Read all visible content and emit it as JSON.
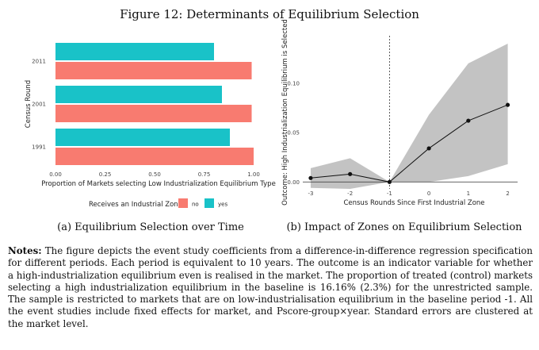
{
  "figure": {
    "title": "Figure 12: Determinants of Equilibrium Selection",
    "caption_a": "(a) Equilibrium Selection over Time",
    "caption_b": "(b) Impact of Zones on Equilibrium Selection",
    "notes_label": "Notes:",
    "notes_text": "The figure depicts the event study coefficients from a difference-in-difference regression specification for different periods. Each period is equivalent to 10 years. The outcome is an indicator variable for whether a high-industrialization equilibrium even is realised in the market. The proportion of treated (control) markets selecting a high industrialization equilibrium in the baseline is 16.16% (2.3%) for the unrestricted sample. The sample is restricted to markets that are on low-industrialisation equilibrium in the baseline period -1. All the event studies include fixed effects for market, and Pscore-group×year. Standard errors are clustered at the market level."
  },
  "chart_data": [
    {
      "type": "bar",
      "orientation": "horizontal",
      "categories": [
        "2011",
        "2001",
        "1991"
      ],
      "series": [
        {
          "name": "yes",
          "color": "#19C2C8",
          "values": [
            0.8,
            0.84,
            0.88
          ]
        },
        {
          "name": "no",
          "color": "#F87B70",
          "values": [
            0.99,
            0.99,
            1.0
          ]
        }
      ],
      "xlabel": "Proportion of Markets selecting Low Industrialization Equilibrium Type",
      "ylabel": "Census Round",
      "xlim": [
        0,
        1
      ],
      "xticks": [
        "0.00",
        "0.25",
        "0.50",
        "0.75",
        "1.00"
      ],
      "legend_title": "Receives an Industrial Zone",
      "legend_position": "bottom",
      "legend_labels": [
        "no",
        "yes"
      ]
    },
    {
      "type": "line",
      "x": [
        -3,
        -2,
        -1,
        0,
        1,
        2
      ],
      "y": [
        0.004,
        0.008,
        0.0,
        0.034,
        0.062,
        0.078
      ],
      "ci_lower": [
        -0.006,
        -0.007,
        0.0,
        0.0,
        0.006,
        0.018
      ],
      "ci_upper": [
        0.014,
        0.024,
        0.0,
        0.068,
        0.12,
        0.14
      ],
      "xlabel": "Census Rounds Since First Industrial Zone",
      "ylabel": "Outcome: High Industrialization Equilibrium is Selected",
      "xlim": [
        -3.2,
        2.25
      ],
      "ylim": [
        -0.007,
        0.148
      ],
      "xticks": [
        "-3",
        "-2",
        "-1",
        "0",
        "1",
        "2"
      ],
      "yticks": [
        "0.00",
        "0.05",
        "0.10"
      ],
      "yticks_values": [
        0.0,
        0.05,
        0.1
      ],
      "reference_vline": -1,
      "reference_hline": 0
    }
  ]
}
